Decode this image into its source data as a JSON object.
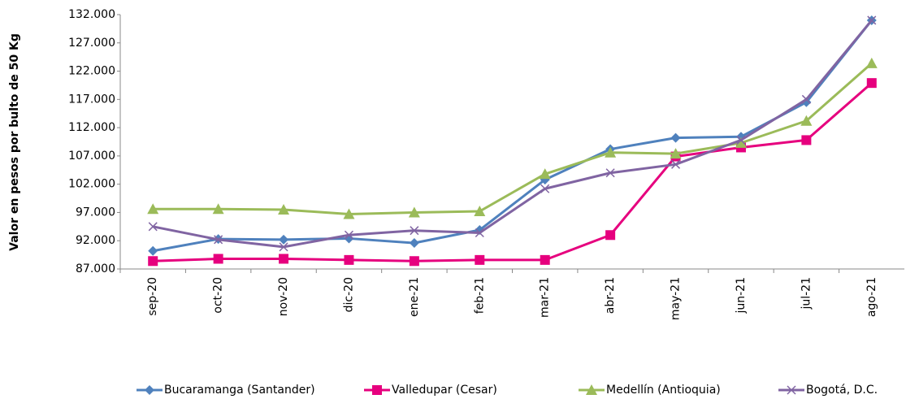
{
  "chart_data": {
    "type": "line",
    "ylabel": "Valor en pesos por bulto de 50 Kg",
    "categories": [
      "sep-20",
      "oct-20",
      "nov-20",
      "dic-20",
      "ene-21",
      "feb-21",
      "mar-21",
      "abr-21",
      "may-21",
      "jun-21",
      "jul-21",
      "ago-21"
    ],
    "series": [
      {
        "name": "Bucaramanga (Santander)",
        "color": "#4f81bd",
        "marker": "diamond",
        "values": [
          90200,
          92300,
          92200,
          92400,
          91600,
          93900,
          102800,
          108200,
          110200,
          110400,
          116500,
          131000
        ]
      },
      {
        "name": "Valledupar (Cesar)",
        "color": "#e6007e",
        "marker": "square",
        "values": [
          88400,
          88800,
          88800,
          88600,
          88400,
          88600,
          88600,
          93000,
          106900,
          108500,
          109800,
          119900
        ]
      },
      {
        "name": "Medellín (Antioquia)",
        "color": "#9bbb59",
        "marker": "triangle",
        "values": [
          97600,
          97600,
          97500,
          96700,
          97000,
          97200,
          103800,
          107600,
          107400,
          109300,
          113200,
          123400
        ]
      },
      {
        "name": "Bogotá, D.C.",
        "color": "#8064a2",
        "marker": "x",
        "values": [
          94500,
          92200,
          90900,
          93000,
          93800,
          93400,
          101200,
          104000,
          105500,
          109800,
          117000,
          131000
        ]
      }
    ],
    "ylim": [
      87000,
      132000
    ],
    "yticks": [
      {
        "value": 87000,
        "label": "87.000"
      },
      {
        "value": 92000,
        "label": "92.000"
      },
      {
        "value": 97000,
        "label": "97.000"
      },
      {
        "value": 102000,
        "label": "102.000"
      },
      {
        "value": 107000,
        "label": "107.000"
      },
      {
        "value": 112000,
        "label": "112.000"
      },
      {
        "value": 117000,
        "label": "117.000"
      },
      {
        "value": 122000,
        "label": "122.000"
      },
      {
        "value": 127000,
        "label": "127.000"
      },
      {
        "value": 132000,
        "label": "132.000"
      }
    ],
    "legend": "bottom"
  }
}
